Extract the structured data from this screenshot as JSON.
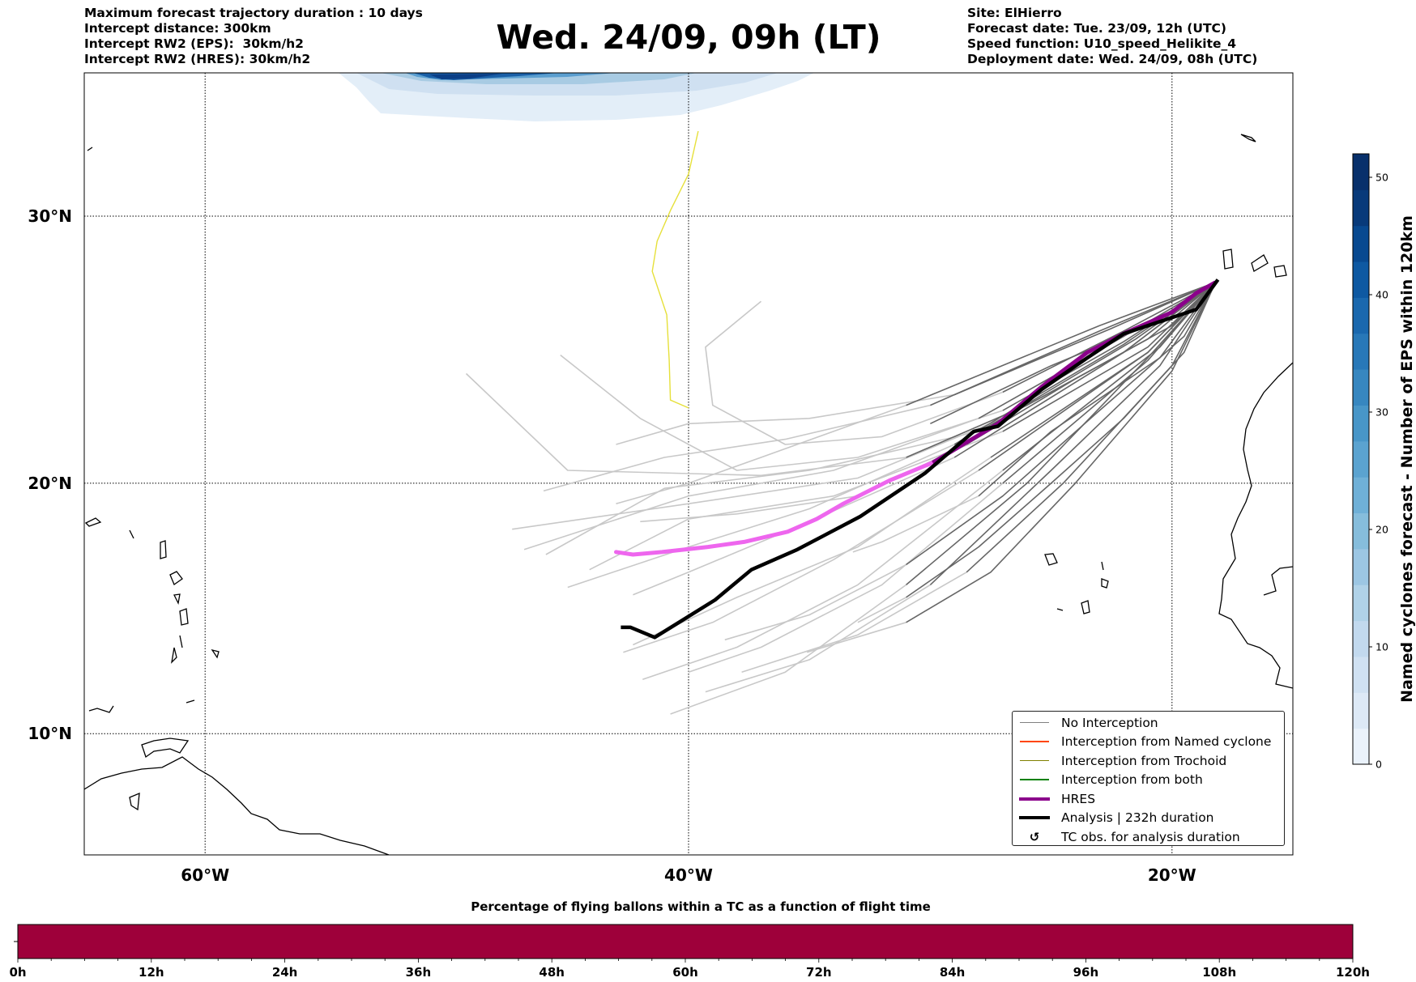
{
  "header": {
    "left": [
      "Maximum forecast trajectory duration : 10 days",
      "Intercept distance: 300km",
      "Intercept RW2 (EPS):  30km/h2",
      "Intercept RW2 (HRES): 30km/h2"
    ],
    "title": "Wed. 24/09, 09h (LT)",
    "right": [
      "Site: ElHierro",
      "Forecast date: Tue. 23/09, 12h (UTC)",
      "Speed function: U10_speed_Helikite_4",
      "Deployment date: Wed. 24/09, 08h (UTC)"
    ]
  },
  "chart_data": [
    {
      "type": "line",
      "title": "Wed. 24/09, 09h (LT)",
      "projection": "mercator",
      "xlim": [
        -65,
        -15
      ],
      "ylim": [
        5,
        35
      ],
      "grid": true,
      "x_ticks": [
        {
          "value": -60,
          "label": "60°W"
        },
        {
          "value": -40,
          "label": "40°W"
        },
        {
          "value": -20,
          "label": "20°W"
        }
      ],
      "y_ticks": [
        {
          "value": 30,
          "label": "30°N"
        },
        {
          "value": 20,
          "label": "20°N"
        },
        {
          "value": 10,
          "label": "10°N"
        }
      ],
      "legend_position": "bottom-right",
      "legend": [
        {
          "label": "No Interception",
          "color": "#808080",
          "style": "thin"
        },
        {
          "label": "Interception from Named cyclone",
          "color": "#ff4500",
          "style": "thin"
        },
        {
          "label": "Interception from Trochoid",
          "color": "#808000",
          "style": "thin"
        },
        {
          "label": "Interception from both",
          "color": "#008000",
          "style": "thin"
        },
        {
          "label": "HRES",
          "color": "#8b008b",
          "style": "thick"
        },
        {
          "label": "Analysis | 232h duration",
          "color": "#000000",
          "style": "thick"
        },
        {
          "label": "TC obs. for analysis duration",
          "color": "#000000",
          "style": "marker",
          "marker": "↺"
        }
      ],
      "colors": {
        "ens_early": "#666666",
        "ens_late": "#c8c8c8",
        "hres": "#8b008b",
        "hres_late": "#ee66ee",
        "analysis": "#000000",
        "trochoid": "#e6e03a"
      },
      "analysis": [
        [
          -18.1,
          27.7
        ],
        [
          -19.0,
          26.6
        ],
        [
          -20.0,
          26.3
        ],
        [
          -22.0,
          25.7
        ],
        [
          -23.5,
          24.8
        ],
        [
          -25.4,
          23.6
        ],
        [
          -27.2,
          22.2
        ],
        [
          -28.2,
          22.0
        ],
        [
          -30.2,
          20.4
        ],
        [
          -32.9,
          18.7
        ],
        [
          -35.5,
          17.4
        ],
        [
          -37.4,
          16.6
        ],
        [
          -38.9,
          15.4
        ],
        [
          -40.4,
          14.5
        ],
        [
          -41.4,
          13.9
        ],
        [
          -42.4,
          14.3
        ],
        [
          -42.8,
          14.3
        ]
      ],
      "hres": [
        [
          -18.2,
          27.6
        ],
        [
          -19.0,
          27.2
        ],
        [
          -20.0,
          26.5
        ],
        [
          -22.0,
          25.7
        ],
        [
          -23.5,
          25.0
        ],
        [
          -25.4,
          23.7
        ],
        [
          -27.2,
          22.3
        ],
        [
          -29.9,
          20.8
        ],
        [
          -31.7,
          20.1
        ],
        [
          -33.6,
          19.2
        ],
        [
          -34.7,
          18.6
        ],
        [
          -35.9,
          18.1
        ],
        [
          -37.7,
          17.7
        ],
        [
          -39.2,
          17.5
        ],
        [
          -41.1,
          17.3
        ],
        [
          -42.3,
          17.2
        ],
        [
          -43.0,
          17.3
        ]
      ],
      "hres_color_split_lon": -30,
      "trochoid_interception": [
        [
          -39.6,
          33.0
        ],
        [
          -40.0,
          31.5
        ],
        [
          -40.75,
          30.2
        ],
        [
          -41.3,
          29.1
        ],
        [
          -41.5,
          28.0
        ],
        [
          -40.9,
          26.4
        ],
        [
          -40.8,
          24.7
        ],
        [
          -40.75,
          23.2
        ],
        [
          -40.0,
          22.9
        ]
      ],
      "ensemble_split_lon": -31,
      "ensemble": [
        [
          [
            -18.2,
            27.6
          ],
          [
            -22,
            25.8
          ],
          [
            -27,
            23.5
          ],
          [
            -32,
            21.8
          ],
          [
            -36,
            21.5
          ],
          [
            -39,
            23
          ],
          [
            -39.3,
            25.2
          ],
          [
            -37,
            26.9
          ]
        ],
        [
          [
            -18.2,
            27.6
          ],
          [
            -21,
            25.5
          ],
          [
            -26,
            23
          ],
          [
            -31,
            21
          ],
          [
            -37,
            20.3
          ],
          [
            -45,
            20.5
          ],
          [
            -49.2,
            24.2
          ]
        ],
        [
          [
            -18.2,
            27.6
          ],
          [
            -22,
            25.4
          ],
          [
            -27,
            22.8
          ],
          [
            -33,
            21
          ],
          [
            -38,
            20.5
          ],
          [
            -42,
            22.5
          ],
          [
            -45.3,
            24.9
          ]
        ],
        [
          [
            -18.2,
            27.6
          ],
          [
            -21.5,
            25.5
          ],
          [
            -27,
            22.5
          ],
          [
            -33,
            20.2
          ],
          [
            -40,
            19.2
          ],
          [
            -47.3,
            18.2
          ]
        ],
        [
          [
            -18.2,
            27.6
          ],
          [
            -22,
            25
          ],
          [
            -28,
            22
          ],
          [
            -35,
            20.5
          ],
          [
            -41,
            19.8
          ],
          [
            -45.9,
            17.2
          ]
        ],
        [
          [
            -18.2,
            27.6
          ],
          [
            -21,
            25.2
          ],
          [
            -27,
            22
          ],
          [
            -34,
            19.5
          ],
          [
            -40,
            18.6
          ],
          [
            -44.1,
            16.6
          ]
        ],
        [
          [
            -18.2,
            27.6
          ],
          [
            -22,
            25
          ],
          [
            -29,
            21
          ],
          [
            -35,
            18.5
          ],
          [
            -40,
            16.5
          ],
          [
            -42.3,
            15.6
          ]
        ],
        [
          [
            -18.2,
            27.6
          ],
          [
            -21,
            25
          ],
          [
            -28,
            20.5
          ],
          [
            -34,
            17
          ],
          [
            -39,
            14.5
          ],
          [
            -42.7,
            13.3
          ]
        ],
        [
          [
            -18.2,
            27.6
          ],
          [
            -20.5,
            25.2
          ],
          [
            -27,
            20.5
          ],
          [
            -33,
            16
          ],
          [
            -38,
            13.5
          ],
          [
            -41.9,
            12.2
          ]
        ],
        [
          [
            -18.2,
            27.6
          ],
          [
            -21,
            24.8
          ],
          [
            -26,
            20
          ],
          [
            -31,
            16
          ],
          [
            -36,
            12.5
          ],
          [
            -40.75,
            10.8
          ]
        ],
        [
          [
            -18.2,
            27.6
          ],
          [
            -20.5,
            24.5
          ],
          [
            -25,
            20.5
          ],
          [
            -30,
            16
          ],
          [
            -35,
            13
          ],
          [
            -39.3,
            11.7
          ]
        ],
        [
          [
            -18.2,
            27.6
          ],
          [
            -20,
            24.5
          ],
          [
            -24.5,
            20
          ],
          [
            -28.5,
            16.5
          ],
          [
            -33,
            14
          ],
          [
            -37.8,
            12.5
          ]
        ],
        [
          [
            -18.2,
            27.6
          ],
          [
            -20,
            24.3
          ],
          [
            -24,
            20
          ],
          [
            -27.5,
            16.5
          ],
          [
            -31,
            14.5
          ],
          [
            -35.1,
            13.3
          ]
        ],
        [
          [
            -18.2,
            27.6
          ],
          [
            -20.5,
            24.8
          ],
          [
            -25,
            22
          ],
          [
            -28,
            19.5
          ],
          [
            -32,
            17.7
          ],
          [
            -33.2,
            17.3
          ]
        ],
        [
          [
            -18.2,
            27.6
          ],
          [
            -23,
            25.8
          ],
          [
            -30,
            23
          ],
          [
            -36,
            21.7
          ],
          [
            -41,
            21
          ],
          [
            -46,
            19.7
          ]
        ],
        [
          [
            -18.2,
            27.6
          ],
          [
            -22,
            25.3
          ],
          [
            -29,
            21.5
          ],
          [
            -35,
            19
          ],
          [
            -40,
            17.5
          ],
          [
            -45,
            15.9
          ]
        ],
        [
          [
            -18.2,
            27.6
          ],
          [
            -21,
            25
          ],
          [
            -27.5,
            21
          ],
          [
            -33,
            17.5
          ],
          [
            -38,
            15.5
          ],
          [
            -42.3,
            13.6
          ]
        ],
        [
          [
            -18.2,
            27.6
          ],
          [
            -23,
            26
          ],
          [
            -31,
            23
          ],
          [
            -37,
            21
          ],
          [
            -40,
            20
          ],
          [
            -43,
            19.2
          ]
        ],
        [
          [
            -18.2,
            27.6
          ],
          [
            -22,
            25.6
          ],
          [
            -28,
            22.5
          ],
          [
            -34,
            20.5
          ],
          [
            -40,
            19.5
          ],
          [
            -46.8,
            17.4
          ]
        ],
        [
          [
            -18.2,
            27.6
          ],
          [
            -21,
            24.7
          ],
          [
            -27,
            20
          ],
          [
            -32,
            16
          ],
          [
            -37,
            13.5
          ],
          [
            -40,
            12.5
          ]
        ],
        [
          [
            -18.2,
            27.6
          ],
          [
            -21,
            26
          ],
          [
            -25,
            24.5
          ],
          [
            -30,
            22.3
          ]
        ],
        [
          [
            -18.2,
            27.6
          ],
          [
            -19.5,
            25
          ],
          [
            -22,
            22.5
          ],
          [
            -25,
            20
          ],
          [
            -28,
            17.5
          ],
          [
            -31,
            15.5
          ],
          [
            -33,
            14.5
          ]
        ],
        [
          [
            -18.2,
            27.6
          ],
          [
            -22.5,
            25.9
          ],
          [
            -29,
            23.4
          ],
          [
            -35,
            22.5
          ],
          [
            -40,
            22.3
          ],
          [
            -43,
            21.5
          ]
        ],
        [
          [
            -18.2,
            27.6
          ],
          [
            -20,
            26
          ],
          [
            -24,
            24
          ],
          [
            -28.5,
            21.5
          ],
          [
            -33,
            19.5
          ],
          [
            -38,
            18.8
          ],
          [
            -42,
            18.5
          ]
        ],
        [
          [
            -18.2,
            27.6
          ],
          [
            -19.5,
            25.6
          ],
          [
            -23,
            22.8
          ],
          [
            -27,
            19.5
          ],
          [
            -31,
            16.8
          ],
          [
            -35,
            14.8
          ],
          [
            -38.5,
            13.8
          ]
        ]
      ]
    },
    {
      "type": "heatmap",
      "colorbar_label": "Named cyclones forecast - Number of EPS within 120km",
      "range": [
        0,
        52
      ],
      "ticks": [
        0,
        10,
        20,
        30,
        40,
        50
      ],
      "colormap": "Blues"
    },
    {
      "type": "bar",
      "title": "Percentage of flying ballons within a TC as a function of flight time",
      "x_ticks": [
        "0h",
        "12h",
        "24h",
        "36h",
        "48h",
        "60h",
        "72h",
        "84h",
        "96h",
        "108h",
        "120h"
      ],
      "xlim": [
        0,
        120
      ],
      "fill_color": "#9e003a"
    }
  ]
}
